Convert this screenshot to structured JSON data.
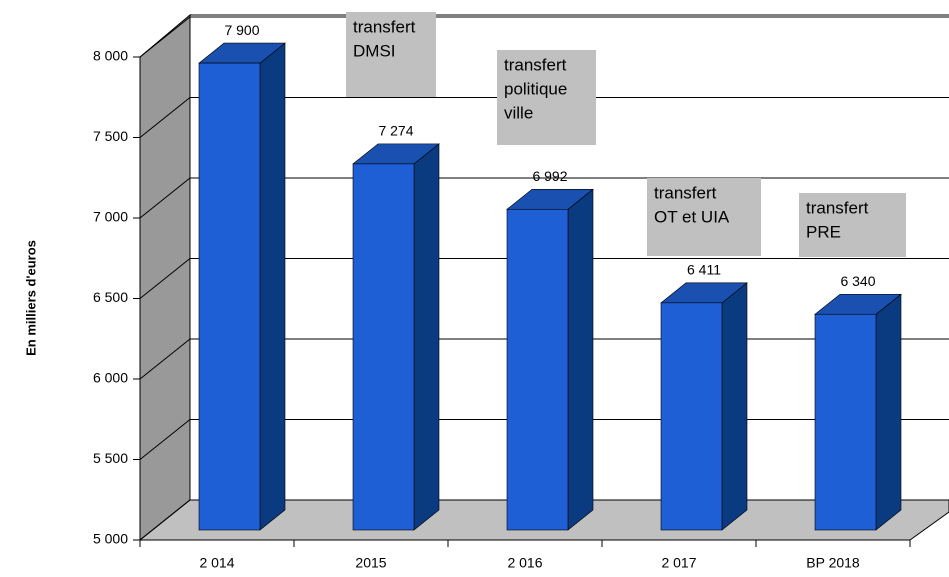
{
  "chart_data": {
    "type": "bar3d",
    "y_label": "En milliers d'euros",
    "categories": [
      "2 014",
      "2015",
      "2 016",
      "2 017",
      "BP 2018"
    ],
    "values": [
      7900,
      7274,
      6992,
      6411,
      6340
    ],
    "value_labels": [
      "7 900",
      "7 274",
      "6 992",
      "6 411",
      "6 340"
    ],
    "color": "#1f5fd6",
    "ylim": [
      5000,
      8000
    ],
    "yticks": [
      {
        "value": 5000,
        "label": "5 000"
      },
      {
        "value": 5500,
        "label": "5 500"
      },
      {
        "value": 6000,
        "label": "6 000"
      },
      {
        "value": 6500,
        "label": "6 500"
      },
      {
        "value": 7000,
        "label": "7 000"
      },
      {
        "value": 7500,
        "label": "7 500"
      },
      {
        "value": 8000,
        "label": "8 000"
      }
    ],
    "grid": true,
    "annotations": [
      {
        "lines": [
          "transfert",
          "DMSI"
        ]
      },
      {
        "lines": [
          "transfert",
          "politique",
          "ville"
        ]
      },
      {
        "lines": [
          "transfert",
          "OT et UIA"
        ]
      },
      {
        "lines": [
          "transfert",
          "PRE"
        ]
      }
    ]
  }
}
